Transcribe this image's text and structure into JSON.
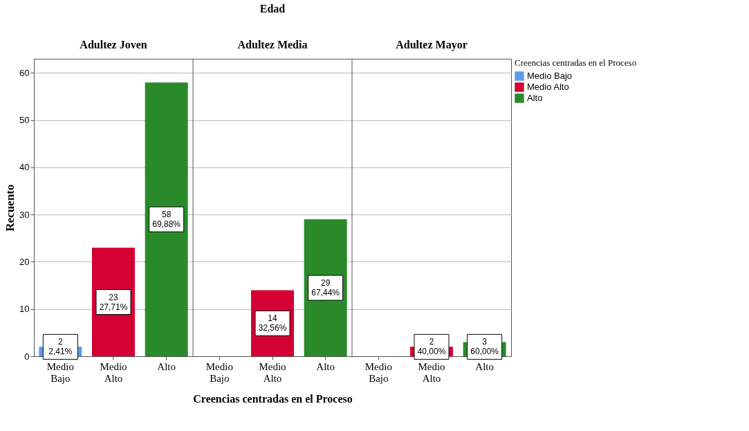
{
  "chart_data": {
    "type": "bar",
    "title": "Edad",
    "annotations": [
      "Adultez Joven",
      "Adultez Media",
      "Adultez Mayor"
    ],
    "xlabel": "Creencias centradas en el Proceso",
    "ylabel": "Recuento",
    "legend_title": "Creencias centradas en el Proceso",
    "legend": "right",
    "categories": [
      "Medio Bajo",
      "Medio Alto",
      "Alto",
      "Medio Bajo",
      "Medio Alto",
      "Alto",
      "Medio Bajo",
      "Medio Alto",
      "Alto"
    ],
    "series": [
      {
        "name": "Medio Bajo",
        "color": "#5a9bea",
        "values": [
          2,
          null,
          null,
          null,
          null,
          null,
          null,
          null,
          null
        ],
        "value_labels": [
          "2\n2,41%",
          null,
          null,
          null,
          null,
          null,
          null,
          null,
          null
        ]
      },
      {
        "name": "Medio Alto",
        "color": "#d50032",
        "values": [
          null,
          23,
          null,
          null,
          14,
          null,
          null,
          2,
          null
        ],
        "value_labels": [
          null,
          "23\n27,71%",
          null,
          null,
          "14\n32,56%",
          null,
          null,
          "2\n40,00%",
          null
        ]
      },
      {
        "name": "Alto",
        "color": "#2a8a2a",
        "values": [
          null,
          null,
          58,
          null,
          null,
          29,
          null,
          null,
          3
        ],
        "value_labels": [
          null,
          null,
          "58\n69,88%",
          null,
          null,
          "29\n67,44%",
          null,
          null,
          "3\n60,00%"
        ]
      }
    ],
    "ylim": [
      0,
      63
    ],
    "yticks": [
      0,
      10,
      20,
      30,
      40,
      50,
      60
    ],
    "grid": "y"
  }
}
